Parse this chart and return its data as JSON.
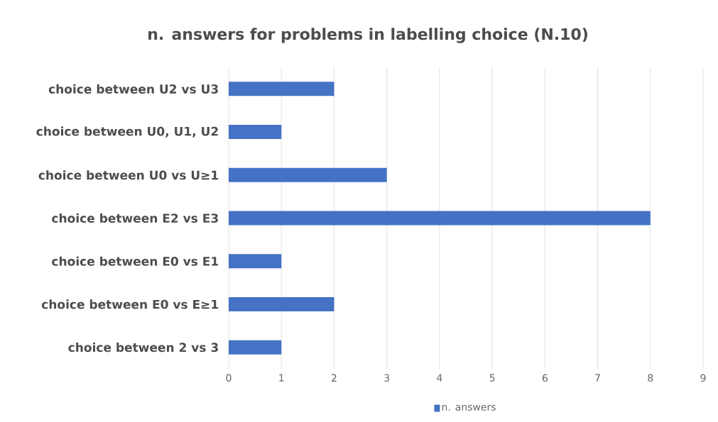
{
  "chart_data": {
    "type": "bar",
    "orientation": "horizontal",
    "title": "n. answers for problems in labelling choice (N.10)",
    "categories": [
      "choice between U2 vs U3",
      "choice between U0, U1, U2",
      "choice between U0 vs U≥1",
      "choice between E2 vs E3",
      "choice between E0 vs E1",
      "choice between E0 vs E≥1",
      "choice between 2 vs 3"
    ],
    "series": [
      {
        "name": "n. answers",
        "color": "#4472c4",
        "values": [
          2,
          1,
          3,
          8,
          1,
          2,
          1
        ]
      }
    ],
    "xlim": [
      0,
      9
    ],
    "xticks": [
      0,
      1,
      2,
      3,
      4,
      5,
      6,
      7,
      8,
      9
    ],
    "grid": "x",
    "legend": "bottom"
  }
}
